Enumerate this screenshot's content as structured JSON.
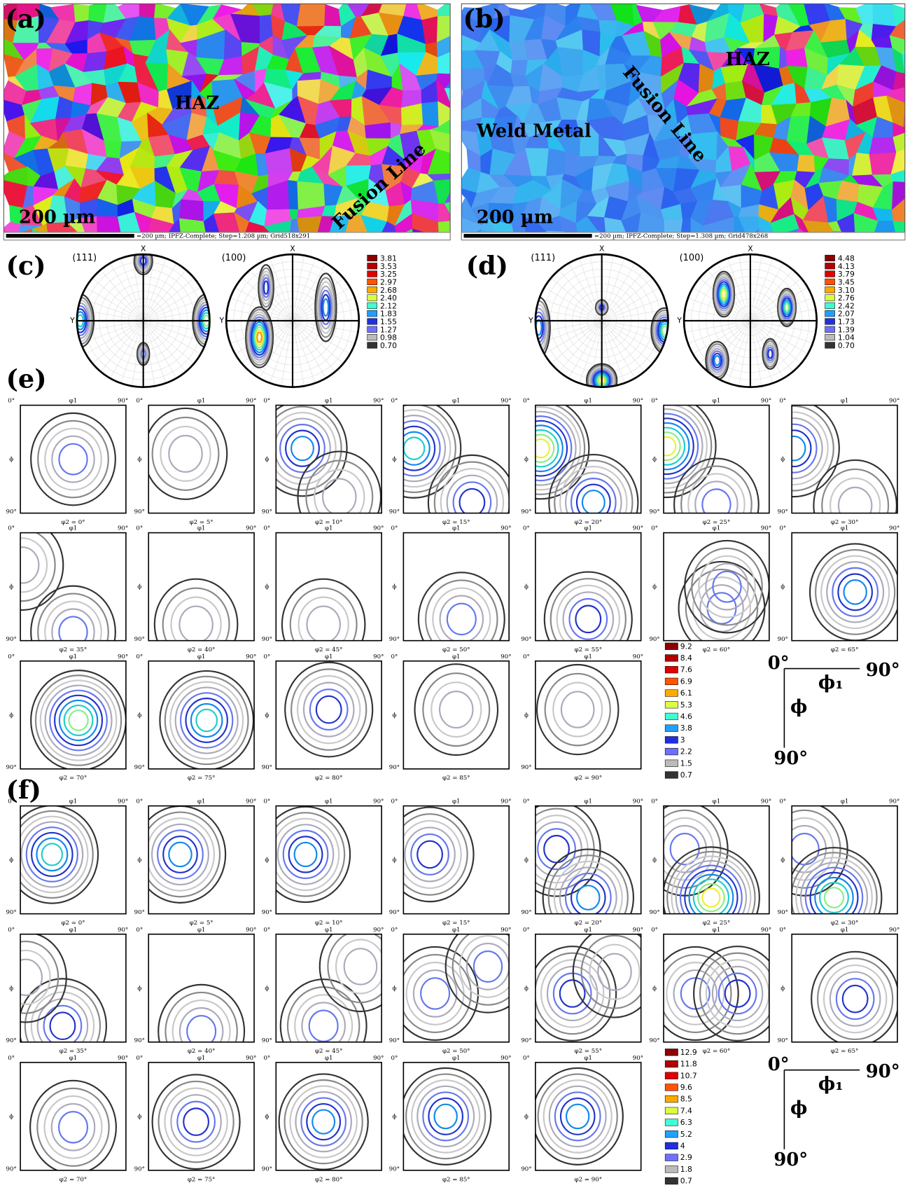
{
  "panels": {
    "a": {
      "label": "(a)",
      "scale": "200 µm",
      "caption": "=200 µm; IPFZ-Complete; Step=1.208 µm; Grid518x291",
      "annotations": [
        "HAZ",
        "Fusion Line"
      ]
    },
    "b": {
      "label": "(b)",
      "scale": "200 µm",
      "caption": "=200 µm; IPFZ-Complete; Step=1.308 µm; Grid478x268",
      "annotations": [
        "Weld Metal",
        "Fusion Line",
        "HAZ"
      ]
    },
    "c": {
      "label": "(c)",
      "pole_figures": [
        "(111)",
        "(100)"
      ],
      "axes": {
        "x": "X",
        "y": "Y"
      },
      "legend": [
        "3.81",
        "3.53",
        "3.25",
        "2.97",
        "2.68",
        "2.40",
        "2.12",
        "1.83",
        "1.55",
        "1.27",
        "0.98",
        "0.70"
      ]
    },
    "d": {
      "label": "(d)",
      "pole_figures": [
        "(111)",
        "(100)"
      ],
      "axes": {
        "x": "X",
        "y": "Y"
      },
      "legend": [
        "4.48",
        "4.13",
        "3.79",
        "3.45",
        "3.10",
        "2.76",
        "2.42",
        "2.07",
        "1.73",
        "1.39",
        "1.04",
        "0.70"
      ]
    },
    "e": {
      "label": "(e)",
      "sections": [
        "φ2 = 0°",
        "φ2 = 5°",
        "φ2 = 10°",
        "φ2 = 15°",
        "φ2 = 20°",
        "φ2 = 25°",
        "φ2 = 30°",
        "φ2 = 35°",
        "φ2 = 40°",
        "φ2 = 45°",
        "φ2 = 50°",
        "φ2 = 55°",
        "φ2 = 60°",
        "φ2 = 65°",
        "φ2 = 70°",
        "φ2 = 75°",
        "φ2 = 80°",
        "φ2 = 85°",
        "φ2 = 90°"
      ],
      "legend": [
        "9.2",
        "8.4",
        "7.6",
        "6.9",
        "6.1",
        "5.3",
        "4.6",
        "3.8",
        "3",
        "2.2",
        "1.5",
        "0.7"
      ]
    },
    "f": {
      "label": "(f)",
      "sections": [
        "φ2 = 0°",
        "φ2 = 5°",
        "φ2 = 10°",
        "φ2 = 15°",
        "φ2 = 20°",
        "φ2 = 25°",
        "φ2 = 30°",
        "φ2 = 35°",
        "φ2 = 40°",
        "φ2 = 45°",
        "φ2 = 50°",
        "φ2 = 55°",
        "φ2 = 60°",
        "φ2 = 65°",
        "φ2 = 70°",
        "φ2 = 75°",
        "φ2 = 80°",
        "φ2 = 85°",
        "φ2 = 90°"
      ],
      "legend": [
        "12.9",
        "11.8",
        "10.7",
        "9.6",
        "8.5",
        "7.4",
        "6.3",
        "5.2",
        "4",
        "2.9",
        "1.8",
        "0.7"
      ]
    }
  },
  "odf_axis": {
    "start": "0°",
    "end": "90°",
    "phi1": "φ1",
    "phi": "ϕ"
  },
  "key": {
    "start": "0°",
    "end": "90°",
    "phi1": "ϕ₁",
    "phi": "ϕ"
  }
}
